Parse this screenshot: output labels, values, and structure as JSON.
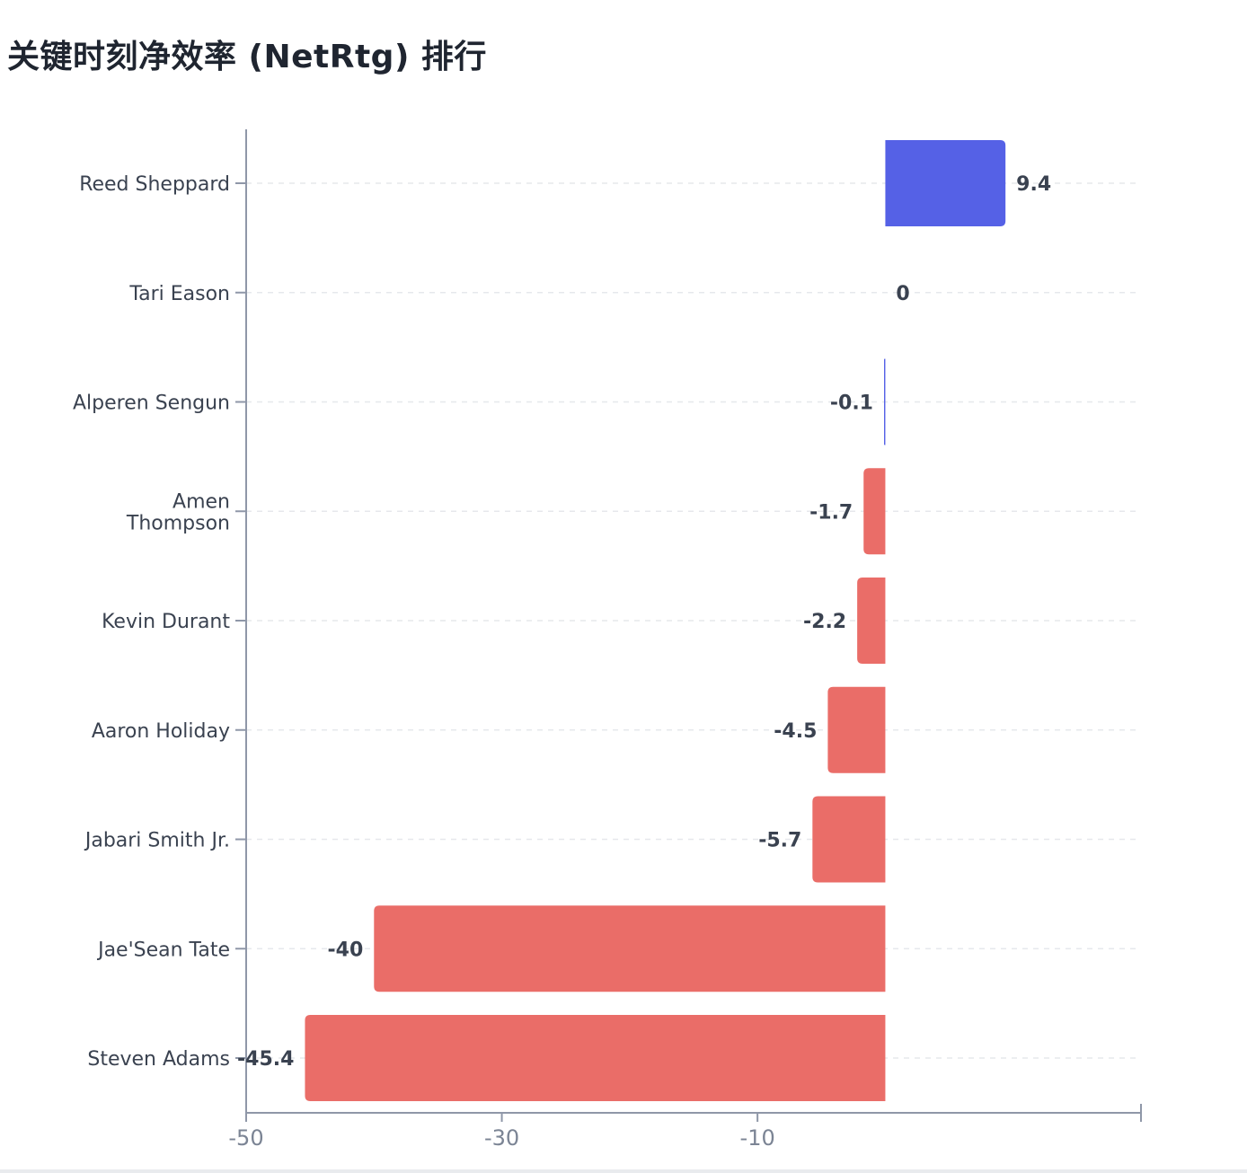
{
  "chart_data": {
    "type": "bar",
    "orientation": "horizontal",
    "title": "关键时刻净效率 (NetRtg) 排行",
    "xlabel": "",
    "ylabel": "",
    "categories": [
      [
        "Reed Sheppard"
      ],
      [
        "Tari Eason"
      ],
      [
        "Alperen Sengun"
      ],
      [
        "Amen",
        "Thompson"
      ],
      [
        "Kevin Durant"
      ],
      [
        "Aaron Holiday"
      ],
      [
        "Jabari Smith Jr."
      ],
      [
        "Jae'Sean Tate"
      ],
      [
        "Steven Adams"
      ]
    ],
    "values": [
      9.4,
      0,
      -0.1,
      -1.7,
      -2.2,
      -4.5,
      -5.7,
      -40,
      -45.4
    ],
    "value_labels": [
      "9.4",
      "0",
      "-0.1",
      "-1.7",
      "-2.2",
      "-4.5",
      "-5.7",
      "-40",
      "-45.4"
    ],
    "xlim": [
      -50,
      20
    ],
    "x_ticks": [
      -50,
      -30,
      -10
    ],
    "x_tick_labels": [
      "-50",
      "-30",
      "-10"
    ],
    "grid": true,
    "legend": "none",
    "colors": {
      "positive": "#5561e6",
      "negative": "#ea6d68",
      "axis": "#8f97a8",
      "grid": "#e6e8ec"
    }
  }
}
